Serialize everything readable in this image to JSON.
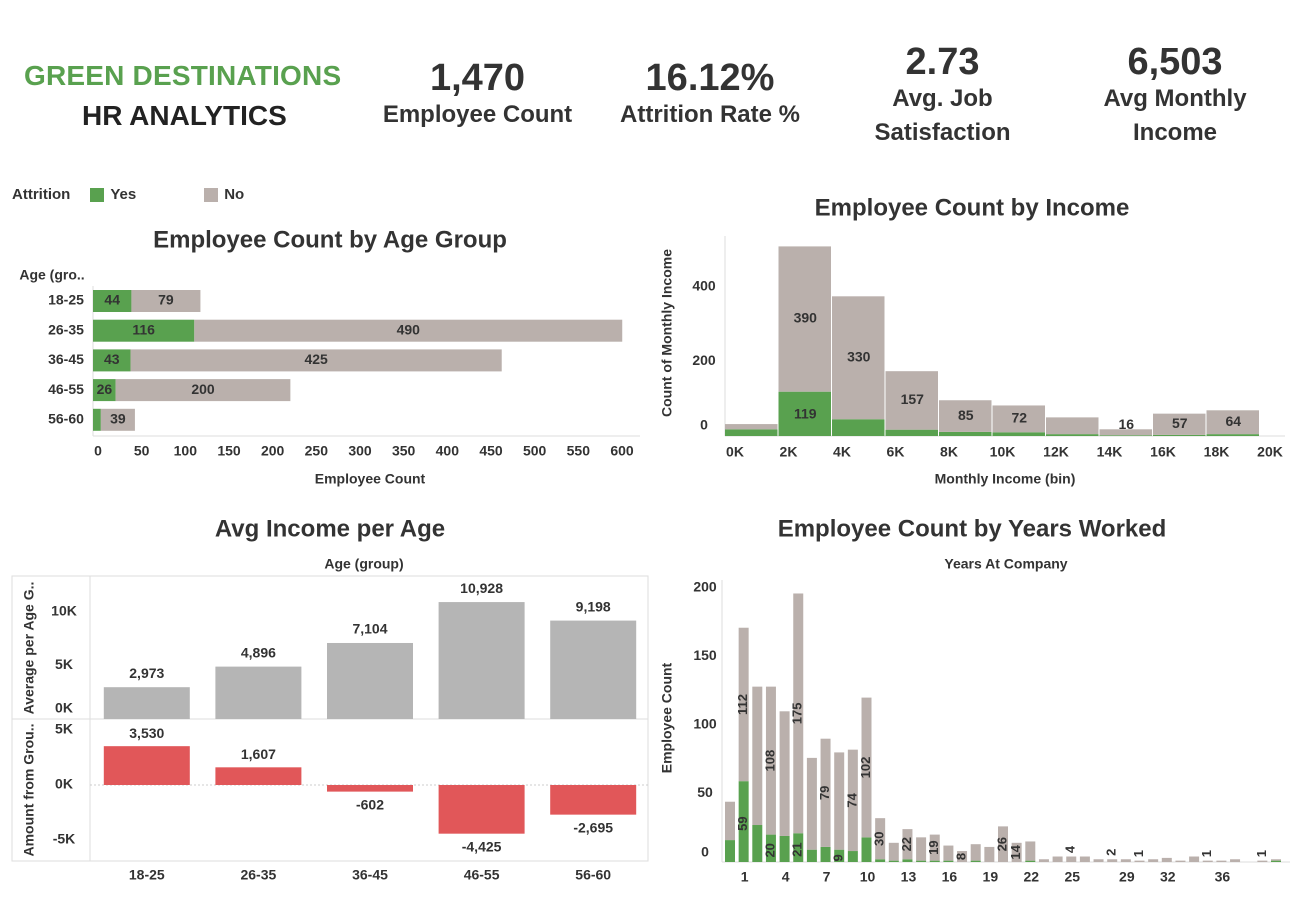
{
  "header": {
    "company": "GREEN DESTINATIONS",
    "subtitle": "HR ANALYTICS"
  },
  "kpis": [
    {
      "value": "1,470",
      "label_lines": [
        "Employee Count"
      ]
    },
    {
      "value": "16.12%",
      "label_lines": [
        "Attrition Rate %"
      ]
    },
    {
      "value": "2.73",
      "label_lines": [
        "Avg. Job",
        "Satisfaction"
      ]
    },
    {
      "value": "6,503",
      "label_lines": [
        "Avg Monthly",
        "Income"
      ]
    }
  ],
  "legend": {
    "title": "Attrition",
    "items": [
      {
        "label": "Yes",
        "color": "#59a14f"
      },
      {
        "label": "No",
        "color": "#bab0ac"
      }
    ]
  },
  "colors": {
    "yes": "#59a14f",
    "no": "#bab0ac",
    "avg_bar": "#b5b5b5",
    "neg": "#e15759"
  },
  "chart_data": [
    {
      "type": "bar",
      "orientation": "horizontal",
      "stacked": true,
      "title": "Employee Count by Age Group",
      "row_header": "Age (gro..",
      "xlabel": "Employee Count",
      "categories": [
        "18-25",
        "26-35",
        "36-45",
        "46-55",
        "56-60"
      ],
      "series": [
        {
          "name": "Yes",
          "values": [
            44,
            116,
            43,
            26,
            9
          ],
          "labels": [
            "44",
            "116",
            "43",
            "26",
            ""
          ]
        },
        {
          "name": "No",
          "values": [
            79,
            490,
            425,
            200,
            39
          ],
          "labels": [
            "79",
            "490",
            "425",
            "200",
            "39"
          ]
        }
      ],
      "xlim": [
        0,
        620
      ],
      "xticks": [
        0,
        50,
        100,
        150,
        200,
        250,
        300,
        350,
        400,
        450,
        500,
        550,
        600
      ]
    },
    {
      "type": "bar",
      "stacked": true,
      "title": "Employee Count by Income",
      "xlabel": "Monthly Income (bin)",
      "ylabel": "Count of Monthly Income",
      "bins": [
        "0K-2K",
        "2K-4K",
        "4K-6K",
        "6K-8K",
        "8K-10K",
        "10K-12K",
        "12K-14K",
        "14K-16K",
        "16K-18K",
        "18K-20K"
      ],
      "series": [
        {
          "name": "Yes",
          "values": [
            18,
            119,
            45,
            17,
            11,
            10,
            5,
            2,
            3,
            5
          ],
          "labels": [
            "",
            "119",
            "",
            "",
            "",
            "",
            "",
            "",
            "",
            ""
          ]
        },
        {
          "name": "No",
          "values": [
            14,
            390,
            330,
            157,
            85,
            72,
            45,
            16,
            57,
            64
          ],
          "labels": [
            "",
            "390",
            "330",
            "157",
            "85",
            "72",
            "",
            "16",
            "57",
            "64"
          ]
        }
      ],
      "xticks": [
        "0K",
        "2K",
        "4K",
        "6K",
        "8K",
        "10K",
        "12K",
        "14K",
        "16K",
        "18K",
        "20K"
      ],
      "yticks": [
        0,
        200,
        400
      ],
      "ylim": [
        0,
        560
      ]
    },
    {
      "type": "bar",
      "title": "Avg Income per Age",
      "column_header": "Age (group)",
      "categories": [
        "18-25",
        "26-35",
        "36-45",
        "46-55",
        "56-60"
      ],
      "panels": [
        {
          "ylabel": "Average per Age G..",
          "values": [
            2973,
            4896,
            7104,
            10928,
            9198
          ],
          "labels": [
            "2,973",
            "4,896",
            "7,104",
            "10,928",
            "9,198"
          ],
          "yticks": [
            {
              "v": 0,
              "t": "0K"
            },
            {
              "v": 5000,
              "t": "5K"
            },
            {
              "v": 10000,
              "t": "10K"
            }
          ],
          "ylim": [
            0,
            12000
          ]
        },
        {
          "ylabel": "Amount from Grou..",
          "values": [
            3530,
            1607,
            -602,
            -4425,
            -2695
          ],
          "labels": [
            "3,530",
            "1,607",
            "-602",
            "-4,425",
            "-2,695"
          ],
          "yticks": [
            {
              "v": 5000,
              "t": "5K"
            },
            {
              "v": 0,
              "t": "0K"
            },
            {
              "v": -5000,
              "t": "-5K"
            }
          ],
          "ylim": [
            -6600,
            6000
          ]
        }
      ]
    },
    {
      "type": "bar",
      "stacked": true,
      "title": "Employee Count by Years Worked",
      "column_header": "Years At Company",
      "ylabel": "Employee Count",
      "x": [
        0,
        1,
        2,
        3,
        4,
        5,
        6,
        7,
        8,
        9,
        10,
        11,
        12,
        13,
        14,
        15,
        16,
        17,
        18,
        19,
        20,
        21,
        22,
        23,
        24,
        25,
        26,
        27,
        28,
        29,
        30,
        31,
        32,
        33,
        34,
        35,
        36,
        37,
        38,
        39,
        40
      ],
      "series": [
        {
          "name": "Yes",
          "values": [
            16,
            59,
            27,
            20,
            19,
            21,
            9,
            11,
            9,
            8,
            18,
            2,
            1,
            2,
            1,
            1,
            1,
            0,
            1,
            0,
            0,
            0,
            1,
            0,
            0,
            0,
            0,
            0,
            0,
            0,
            0,
            0,
            0,
            0,
            0,
            0,
            0,
            0,
            0,
            0,
            1
          ],
          "labels": [
            "",
            "59",
            "",
            "20",
            "",
            "21",
            "",
            "",
            "9",
            "",
            "",
            "",
            "",
            "",
            "",
            "",
            "",
            "",
            "",
            "",
            "",
            "",
            "",
            "",
            "",
            "",
            "",
            "",
            "",
            "",
            "",
            "",
            "",
            "",
            "",
            "",
            "",
            "",
            "",
            "",
            ""
          ]
        },
        {
          "name": "No",
          "values": [
            28,
            112,
            101,
            108,
            91,
            175,
            67,
            79,
            71,
            74,
            102,
            30,
            13,
            22,
            17,
            19,
            11,
            8,
            12,
            11,
            26,
            14,
            14,
            2,
            4,
            4,
            4,
            2,
            2,
            2,
            1,
            2,
            3,
            1,
            4,
            1,
            1,
            2,
            0,
            1,
            1
          ],
          "labels": [
            "",
            "112",
            "",
            "108",
            "",
            "175",
            "",
            "79",
            "",
            "74",
            "102",
            "30",
            "",
            "22",
            "",
            "19",
            "",
            "8",
            "",
            "",
            "26",
            "14",
            "",
            "",
            "",
            "4",
            "",
            "",
            "2",
            "",
            "1",
            "",
            "",
            "",
            "",
            "1",
            "",
            "",
            "",
            "1",
            ""
          ]
        }
      ],
      "xticks": [
        1,
        4,
        7,
        10,
        13,
        16,
        19,
        22,
        25,
        29,
        32,
        36
      ],
      "yticks": [
        0,
        50,
        100,
        150,
        200
      ],
      "ylim": [
        0,
        210
      ]
    }
  ]
}
